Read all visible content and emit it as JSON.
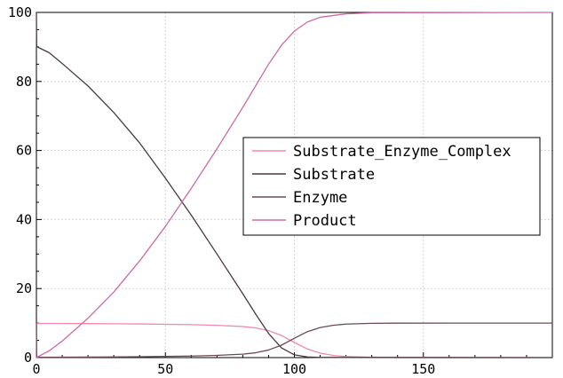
{
  "chart_data": {
    "type": "line",
    "title": "",
    "xlabel": "",
    "ylabel": "",
    "xlim": [
      0,
      200
    ],
    "ylim": [
      0,
      100
    ],
    "x_ticks": [
      0,
      50,
      100,
      150
    ],
    "x_tick_labels": [
      "0",
      "50",
      "100",
      "150"
    ],
    "y_ticks": [
      0,
      20,
      40,
      60,
      80,
      100
    ],
    "y_tick_labels": [
      "0",
      "20",
      "40",
      "60",
      "80",
      "100"
    ],
    "grid": true,
    "legend_position": "center-right",
    "series": [
      {
        "name": "Substrate_Enzyme_Complex",
        "color": "#f08aa8",
        "points": [
          [
            0,
            0
          ],
          [
            0.1,
            9.9
          ],
          [
            5,
            9.9
          ],
          [
            20,
            9.85
          ],
          [
            40,
            9.75
          ],
          [
            60,
            9.55
          ],
          [
            70,
            9.35
          ],
          [
            80,
            9.0
          ],
          [
            85,
            8.6
          ],
          [
            90,
            7.8
          ],
          [
            95,
            6.4
          ],
          [
            100,
            4.4
          ],
          [
            105,
            2.5
          ],
          [
            110,
            1.3
          ],
          [
            115,
            0.65
          ],
          [
            120,
            0.3
          ],
          [
            130,
            0.08
          ],
          [
            140,
            0.02
          ],
          [
            200,
            0
          ]
        ]
      },
      {
        "name": "Substrate",
        "color": "#4a3a3a",
        "points": [
          [
            0,
            100
          ],
          [
            0.1,
            90.1
          ],
          [
            5,
            88.3
          ],
          [
            10,
            85.2
          ],
          [
            20,
            78.7
          ],
          [
            30,
            71.0
          ],
          [
            40,
            62.2
          ],
          [
            50,
            52.0
          ],
          [
            60,
            41.3
          ],
          [
            70,
            30.0
          ],
          [
            80,
            18.5
          ],
          [
            85,
            12.6
          ],
          [
            90,
            7.0
          ],
          [
            95,
            2.8
          ],
          [
            100,
            0.8
          ],
          [
            105,
            0.2
          ],
          [
            110,
            0.05
          ],
          [
            200,
            0
          ]
        ]
      },
      {
        "name": "Enzyme",
        "color": "#6b4a58",
        "points": [
          [
            0,
            10
          ],
          [
            0.1,
            0.1
          ],
          [
            20,
            0.15
          ],
          [
            40,
            0.25
          ],
          [
            60,
            0.45
          ],
          [
            70,
            0.65
          ],
          [
            80,
            1.0
          ],
          [
            85,
            1.4
          ],
          [
            90,
            2.2
          ],
          [
            95,
            3.6
          ],
          [
            100,
            5.6
          ],
          [
            105,
            7.5
          ],
          [
            110,
            8.7
          ],
          [
            115,
            9.35
          ],
          [
            120,
            9.7
          ],
          [
            130,
            9.92
          ],
          [
            140,
            9.98
          ],
          [
            200,
            10
          ]
        ]
      },
      {
        "name": "Product",
        "color": "#d06aa0",
        "points": [
          [
            0,
            0
          ],
          [
            5,
            2.0
          ],
          [
            10,
            4.8
          ],
          [
            20,
            11.4
          ],
          [
            30,
            19.0
          ],
          [
            40,
            28.0
          ],
          [
            50,
            38.0
          ],
          [
            60,
            49.0
          ],
          [
            70,
            60.5
          ],
          [
            80,
            72.5
          ],
          [
            90,
            85.0
          ],
          [
            95,
            90.5
          ],
          [
            100,
            94.6
          ],
          [
            105,
            97.2
          ],
          [
            110,
            98.6
          ],
          [
            120,
            99.6
          ],
          [
            130,
            99.9
          ],
          [
            200,
            100
          ]
        ]
      }
    ]
  }
}
